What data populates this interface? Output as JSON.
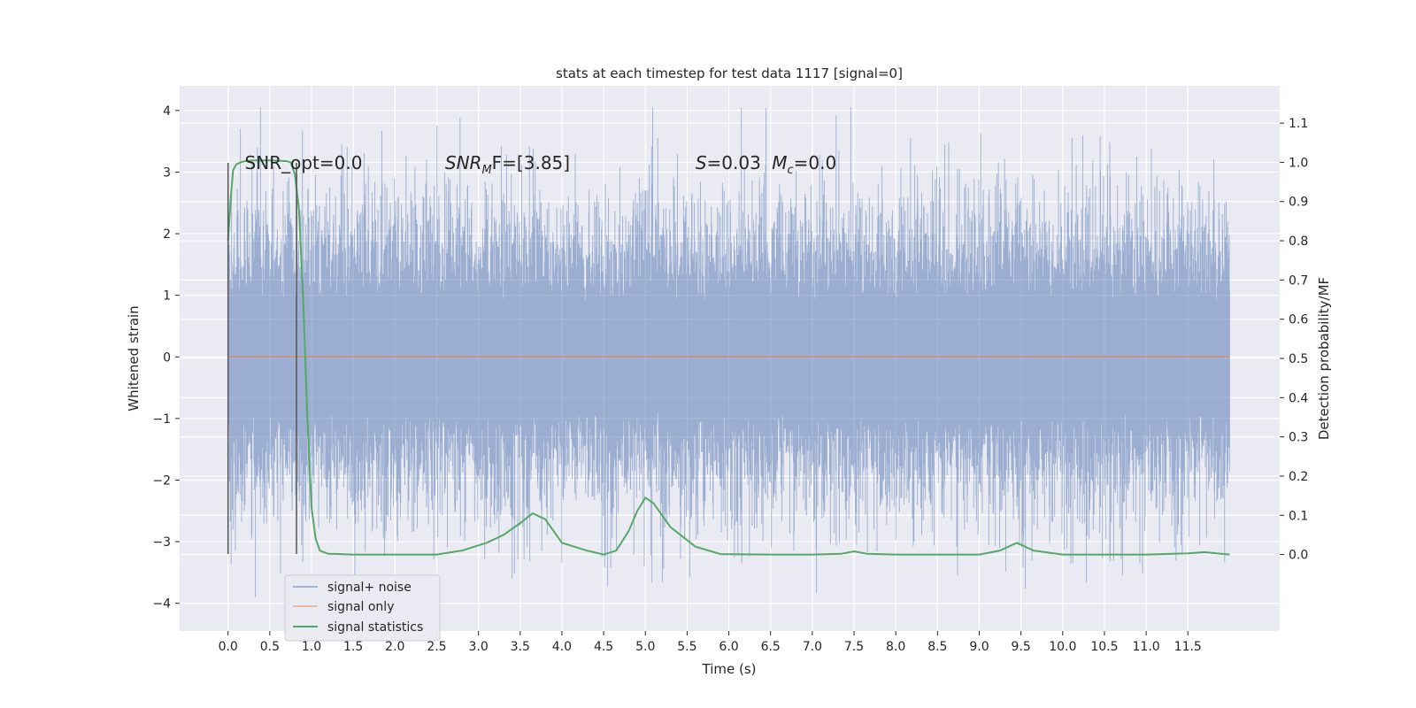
{
  "chart_data": {
    "type": "line",
    "title": "stats at each timestep for test data 1117 [signal=0]",
    "xlabel": "Time (s)",
    "ylabel": "Whitened strain",
    "y2label": "Detection probability/MF",
    "xlim": [
      -0.58,
      12.6
    ],
    "ylim": [
      -4.45,
      4.4
    ],
    "y2lim": [
      -0.195,
      1.195
    ],
    "x_ticks": [
      0.0,
      0.5,
      1.0,
      1.5,
      2.0,
      2.5,
      3.0,
      3.5,
      4.0,
      4.5,
      5.0,
      5.5,
      6.0,
      6.5,
      7.0,
      7.5,
      8.0,
      8.5,
      9.0,
      9.5,
      10.0,
      10.5,
      11.0,
      11.5
    ],
    "x_tick_labels": [
      "0.0",
      "0.5",
      "1.0",
      "1.5",
      "2.0",
      "2.5",
      "3.0",
      "3.5",
      "4.0",
      "4.5",
      "5.0",
      "5.5",
      "6.0",
      "6.5",
      "7.0",
      "7.5",
      "8.0",
      "8.5",
      "9.0",
      "9.5",
      "10.0",
      "10.5",
      "11.0",
      "11.5"
    ],
    "y_ticks": [
      -4,
      -3,
      -2,
      -1,
      0,
      1,
      2,
      3,
      4
    ],
    "y_tick_labels": [
      "−4",
      "−3",
      "−2",
      "−1",
      "0",
      "1",
      "2",
      "3",
      "4"
    ],
    "y2_ticks": [
      0.0,
      0.1,
      0.2,
      0.3,
      0.4,
      0.5,
      0.6,
      0.7,
      0.8,
      0.9,
      1.0,
      1.1
    ],
    "y2_tick_labels": [
      "0.0",
      "0.1",
      "0.2",
      "0.3",
      "0.4",
      "0.5",
      "0.6",
      "0.7",
      "0.8",
      "0.9",
      "1.0",
      "1.1"
    ],
    "grid": true,
    "legend_position": "lower-left",
    "series": [
      {
        "name": "signal+ noise",
        "color": "#4c72b0",
        "axis": "left",
        "x_range": [
          0.0,
          12.0
        ],
        "amplitude_envelope": [
          -3.9,
          4.05
        ],
        "note_kind": "noise"
      },
      {
        "name": "signal only",
        "color": "#dd8452",
        "axis": "left",
        "x": [
          0.0,
          12.0
        ],
        "y": [
          0.0,
          0.0
        ]
      },
      {
        "name": "signal statistics",
        "color": "#55a868",
        "axis": "right",
        "x": [
          0.0,
          0.03,
          0.06,
          0.1,
          0.15,
          0.2,
          0.3,
          0.4,
          0.5,
          0.6,
          0.7,
          0.75,
          0.8,
          0.85,
          0.9,
          0.95,
          1.0,
          1.05,
          1.1,
          1.2,
          1.5,
          2.0,
          2.5,
          2.8,
          3.1,
          3.3,
          3.5,
          3.65,
          3.8,
          4.0,
          4.3,
          4.5,
          4.65,
          4.8,
          4.9,
          5.0,
          5.1,
          5.3,
          5.6,
          5.9,
          6.5,
          7.0,
          7.35,
          7.5,
          7.65,
          8.0,
          9.0,
          9.25,
          9.45,
          9.65,
          10.0,
          11.0,
          11.5,
          11.7,
          11.9,
          12.0
        ],
        "y": [
          0.8,
          0.9,
          0.98,
          0.995,
          1.0,
          1.003,
          1.005,
          1.005,
          1.005,
          1.004,
          1.003,
          1.0,
          0.97,
          0.88,
          0.65,
          0.35,
          0.12,
          0.04,
          0.01,
          0.002,
          0.0,
          0.0,
          0.0,
          0.01,
          0.03,
          0.05,
          0.08,
          0.105,
          0.09,
          0.03,
          0.01,
          0.0,
          0.01,
          0.06,
          0.11,
          0.145,
          0.13,
          0.07,
          0.02,
          0.001,
          0.0,
          0.0,
          0.002,
          0.008,
          0.002,
          0.0,
          0.0,
          0.01,
          0.03,
          0.01,
          0.0,
          0.0,
          0.003,
          0.006,
          0.002,
          0.0
        ]
      }
    ],
    "vertical_lines": [
      {
        "x": 0.0,
        "ymin": -3.2,
        "ymax": 3.15,
        "color": "#555555"
      },
      {
        "x": 0.82,
        "ymin": -3.2,
        "ymax": 3.15,
        "color": "#555555"
      }
    ],
    "annotations": [
      {
        "text": "SNR_opt=0.0",
        "x": 0.2,
        "y": 3.15
      },
      {
        "text_parts": [
          "SNR",
          "M",
          "F=[3.85]"
        ],
        "x": 2.6,
        "y": 3.15
      },
      {
        "text_parts": [
          "S",
          "=0.03   ",
          "M",
          "c",
          "=0.0"
        ],
        "x": 5.6,
        "y": 3.15
      }
    ]
  }
}
